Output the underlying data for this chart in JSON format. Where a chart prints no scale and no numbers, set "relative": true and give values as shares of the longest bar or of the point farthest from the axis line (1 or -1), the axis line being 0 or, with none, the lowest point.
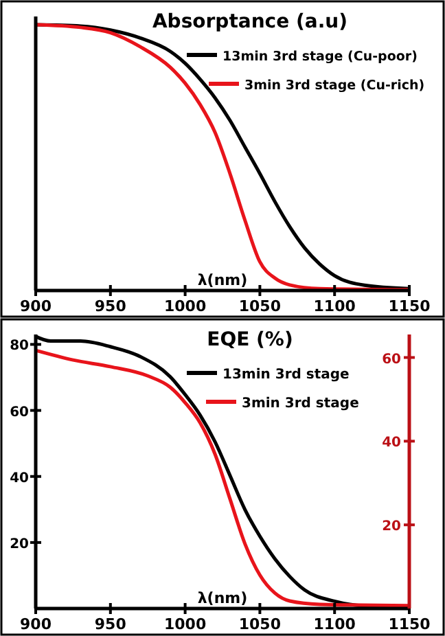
{
  "chart_data": [
    {
      "type": "line",
      "title": "Absorptance (a.u)",
      "xlabel": "λ(nm)",
      "relative": true,
      "xlim": [
        900,
        1150
      ],
      "xticks": [
        900,
        950,
        1000,
        1050,
        1100,
        1150
      ],
      "legend": "top right",
      "series": [
        {
          "name": "13min 3rd stage (Cu-poor)",
          "color": "#000000",
          "x": [
            900,
            930,
            950,
            970,
            990,
            1000,
            1010,
            1020,
            1030,
            1040,
            1050,
            1060,
            1070,
            1080,
            1090,
            1100,
            1120,
            1150
          ],
          "values": [
            1,
            0.995,
            0.98,
            0.95,
            0.9,
            0.855,
            0.795,
            0.725,
            0.64,
            0.54,
            0.44,
            0.335,
            0.24,
            0.16,
            0.1,
            0.056,
            0.02,
            0.007
          ]
        },
        {
          "name": "3min 3rd stage (Cu-rich)",
          "color": "#e8141b",
          "x": [
            900,
            930,
            950,
            970,
            990,
            1000,
            1010,
            1020,
            1030,
            1040,
            1050,
            1060,
            1070,
            1090,
            1150
          ],
          "values": [
            1,
            0.99,
            0.97,
            0.917,
            0.84,
            0.78,
            0.7,
            0.595,
            0.44,
            0.265,
            0.108,
            0.047,
            0.021,
            0.007,
            0.003
          ]
        }
      ]
    },
    {
      "type": "line",
      "title": "EQE (%)",
      "xlabel": "λ(nm)",
      "xlim": [
        900,
        1150
      ],
      "xticks": [
        900,
        950,
        1000,
        1050,
        1100,
        1150
      ],
      "ylim": [
        0,
        83
      ],
      "yticks": [
        20,
        40,
        60,
        80
      ],
      "y2lim": [
        0,
        65.5
      ],
      "y2ticks": [
        20,
        40,
        60
      ],
      "legend": "top right",
      "series": [
        {
          "name": "13min 3rd stage",
          "color": "#000000",
          "x": [
            900,
            910,
            930,
            950,
            970,
            990,
            1000,
            1010,
            1020,
            1030,
            1040,
            1050,
            1060,
            1070,
            1080,
            1100,
            1120,
            1150
          ],
          "values": [
            82.4,
            81,
            81,
            79.3,
            76.3,
            70.2,
            64.8,
            58.6,
            50.5,
            40.3,
            30,
            21.9,
            15.1,
            9.7,
            5.6,
            2.2,
            0.8,
            0.4
          ]
        },
        {
          "name": "3min 3rd stage",
          "color": "#e8141b",
          "axis": "y2",
          "x": [
            900,
            925,
            950,
            975,
            990,
            1000,
            1010,
            1020,
            1030,
            1040,
            1050,
            1060,
            1070,
            1090,
            1150
          ],
          "values": [
            61.7,
            59.4,
            57.8,
            55.6,
            52.9,
            49.2,
            44.4,
            36.9,
            26.2,
            15.5,
            8,
            3.7,
            1.8,
            1,
            0.7
          ]
        }
      ]
    }
  ]
}
